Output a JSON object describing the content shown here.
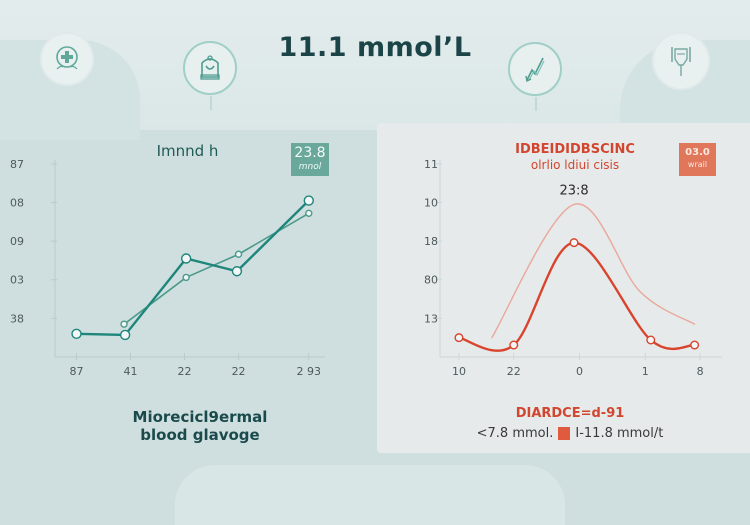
{
  "header": {
    "title": "11.1 mmol’L",
    "icons": [
      "medical-plus-icon",
      "glucose-meter-icon",
      "trend-arrow-icon",
      "syringe-icon"
    ]
  },
  "colors": {
    "teal_primary": "#1e857b",
    "teal_secondary": "#4c9a8c",
    "red_primary": "#d9442c",
    "red_faint": "#eaa79b",
    "badge_teal": "#6aa89c",
    "badge_red": "#e0765a"
  },
  "left_panel": {
    "title": "Imnnd h",
    "badge_value": "23.8",
    "badge_unit": "mnol",
    "caption_line1": "Miorecicl9ermal",
    "caption_line2": "blood glavoge"
  },
  "right_panel": {
    "title_line1": "IDBEIDIDBSCINC",
    "title_line2": "olrlio ldiui cisis",
    "badge_value": "03.0",
    "badge_unit": "wrail",
    "peak_label": "23:8",
    "caption": "DIARDCE=d-91",
    "legend_low": "<7.8 mmol.",
    "legend_high": "I-11.8 mmol/t"
  },
  "chart_data": [
    {
      "type": "line",
      "title": "Imnnd h",
      "xlabel": "",
      "ylabel": "",
      "x_ticks": [
        {
          "v": 0,
          "label": "87"
        },
        {
          "v": 1,
          "label": "41"
        },
        {
          "v": 2,
          "label": "22"
        },
        {
          "v": 3,
          "label": "22"
        },
        {
          "v": 4.3,
          "label": "2 93"
        }
      ],
      "y_ticks": [
        {
          "v": 1,
          "label": "38"
        },
        {
          "v": 2,
          "label": "03"
        },
        {
          "v": 3,
          "label": "09"
        },
        {
          "v": 4,
          "label": "08"
        },
        {
          "v": 5,
          "label": "87"
        }
      ],
      "xlim": [
        -0.25,
        4.6
      ],
      "ylim": [
        0,
        5.1
      ],
      "grid": false,
      "series": [
        {
          "name": "primary",
          "x": [
            0,
            0.9,
            2.03,
            2.97,
            4.3
          ],
          "y": [
            0.6,
            0.57,
            2.55,
            2.22,
            4.05
          ],
          "smooth": false
        },
        {
          "name": "secondary",
          "x": [
            0.88,
            2.03,
            3.0,
            4.3
          ],
          "y": [
            0.85,
            2.06,
            2.66,
            3.72
          ],
          "smooth": false
        }
      ]
    },
    {
      "type": "line",
      "title": "IDBEIDIDBSCINC olrlio ldiui cisis",
      "xlabel": "",
      "ylabel": "",
      "x_ticks": [
        {
          "v": 0,
          "label": "10"
        },
        {
          "v": 1,
          "label": "22"
        },
        {
          "v": 2.2,
          "label": "0"
        },
        {
          "v": 3.4,
          "label": "1"
        },
        {
          "v": 4.4,
          "label": "8"
        }
      ],
      "y_ticks": [
        {
          "v": 1,
          "label": "13"
        },
        {
          "v": 2,
          "label": "80"
        },
        {
          "v": 3,
          "label": "18"
        },
        {
          "v": 4,
          "label": "10"
        },
        {
          "v": 5,
          "label": "11"
        }
      ],
      "xlim": [
        -0.2,
        4.8
      ],
      "ylim": [
        0,
        5.1
      ],
      "grid": false,
      "annotations": [
        {
          "text": "23:8",
          "x": 2.1,
          "y": 4.05
        }
      ],
      "series": [
        {
          "name": "primary",
          "x": [
            0,
            1,
            2.1,
            3.5,
            4.3
          ],
          "y": [
            0.5,
            0.31,
            2.96,
            0.44,
            0.31
          ],
          "smooth": true
        },
        {
          "name": "faint",
          "x": [
            0.6,
            2.1,
            3.3,
            4.3
          ],
          "y": [
            0.5,
            3.95,
            1.7,
            0.85
          ],
          "smooth": true
        }
      ]
    }
  ]
}
